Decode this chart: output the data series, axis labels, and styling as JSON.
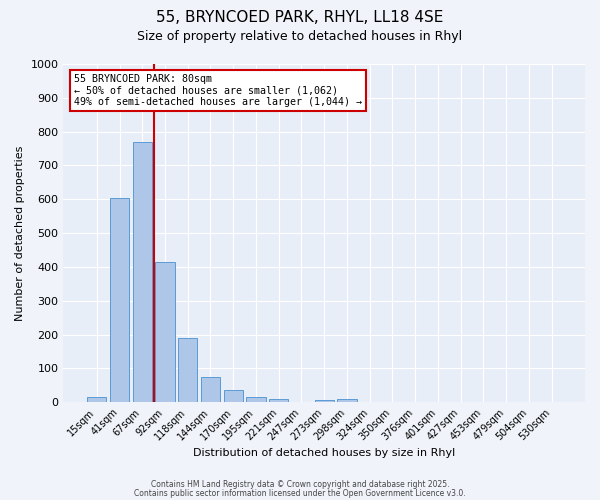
{
  "title1": "55, BRYNCOED PARK, RHYL, LL18 4SE",
  "title2": "Size of property relative to detached houses in Rhyl",
  "xlabel": "Distribution of detached houses by size in Rhyl",
  "ylabel": "Number of detached properties",
  "bar_labels": [
    "15sqm",
    "41sqm",
    "67sqm",
    "92sqm",
    "118sqm",
    "144sqm",
    "170sqm",
    "195sqm",
    "221sqm",
    "247sqm",
    "273sqm",
    "298sqm",
    "324sqm",
    "350sqm",
    "376sqm",
    "401sqm",
    "427sqm",
    "453sqm",
    "479sqm",
    "504sqm",
    "530sqm"
  ],
  "bar_values": [
    15,
    605,
    770,
    415,
    190,
    75,
    35,
    15,
    8,
    0,
    5,
    8,
    0,
    0,
    0,
    0,
    0,
    0,
    0,
    0,
    0
  ],
  "bar_color": "#aec6e8",
  "bar_edgecolor": "#5b9bd5",
  "vline_x": 2.5,
  "vline_color": "#cc0000",
  "ylim": [
    0,
    1000
  ],
  "yticks": [
    0,
    100,
    200,
    300,
    400,
    500,
    600,
    700,
    800,
    900,
    1000
  ],
  "annotation_title": "55 BRYNCOED PARK: 80sqm",
  "annotation_line1": "← 50% of detached houses are smaller (1,062)",
  "annotation_line2": "49% of semi-detached houses are larger (1,044) →",
  "annotation_box_color": "#cc0000",
  "footer1": "Contains HM Land Registry data © Crown copyright and database right 2025.",
  "footer2": "Contains public sector information licensed under the Open Government Licence v3.0.",
  "bg_color": "#f0f4fa",
  "plot_bg_color": "#e8eef8"
}
